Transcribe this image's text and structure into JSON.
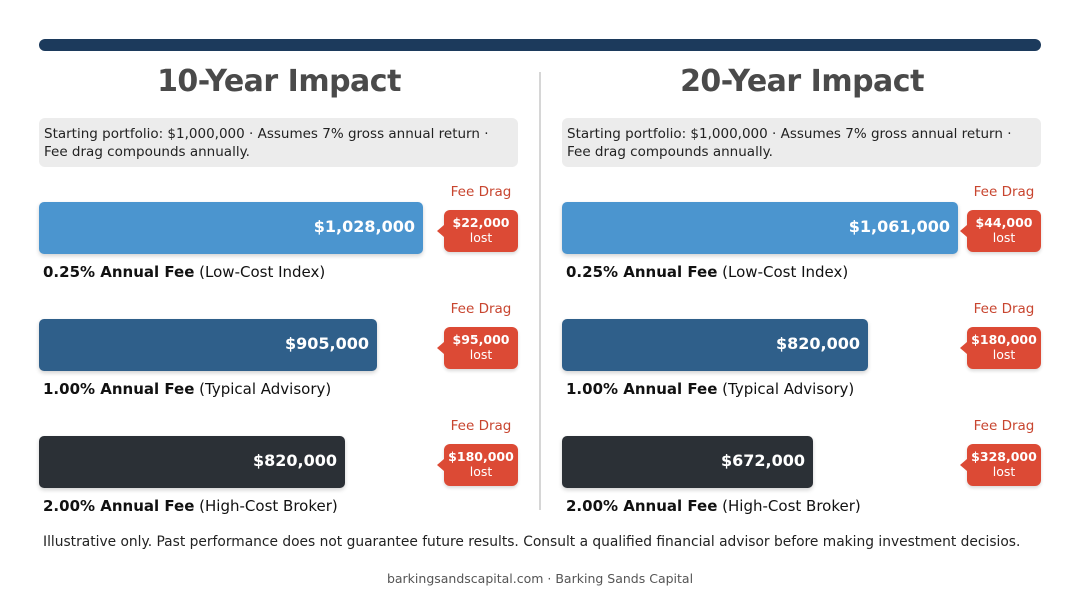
{
  "colors": {
    "top_bar": "#1c3a5c",
    "low_cost_bar": "#4b95cf",
    "typical_bar": "#2f5f8a",
    "high_cost_bar": "#2b3036",
    "fee_drag": "#dc4a35"
  },
  "chart_data": [
    {
      "type": "bar",
      "orientation": "horizontal",
      "title": "10-Year Impact",
      "note": "Starting portfolio: $1,000,000 · Assumes 7% gross annual return · Fee drag compounds annually.",
      "rows": [
        {
          "fee": "0.25% Annual Fee",
          "category": "(Low-Cost Index)",
          "value": 1028000,
          "value_label": "$1,028,000",
          "drag_title": "Fee Drag",
          "drag_amount": "$22,000",
          "drag_suffix": "lost"
        },
        {
          "fee": "1.00% Annual Fee",
          "category": "(Typical Advisory)",
          "value": 905000,
          "value_label": "$905,000",
          "drag_title": "Fee Drag",
          "drag_amount": "$95,000",
          "drag_suffix": "lost"
        },
        {
          "fee": "2.00% Annual Fee",
          "category": "(High-Cost Broker)",
          "value": 820000,
          "value_label": "$820,000",
          "drag_title": "Fee Drag",
          "drag_amount": "$180,000",
          "drag_suffix": "lost"
        }
      ]
    },
    {
      "type": "bar",
      "orientation": "horizontal",
      "title": "20-Year Impact",
      "note": "Starting portfolio: $1,000,000 · Assumes 7% gross annual return · Fee drag compounds annually.",
      "rows": [
        {
          "fee": "0.25% Annual Fee",
          "category": "(Low-Cost Index)",
          "value": 1061000,
          "value_label": "$1,061,000",
          "drag_title": "Fee Drag",
          "drag_amount": "$44,000",
          "drag_suffix": "lost"
        },
        {
          "fee": "1.00% Annual Fee",
          "category": "(Typical Advisory)",
          "value": 820000,
          "value_label": "$820,000",
          "drag_title": "Fee Drag",
          "drag_amount": "$180,000",
          "drag_suffix": "lost"
        },
        {
          "fee": "2.00% Annual Fee",
          "category": "(High-Cost Broker)",
          "value": 672000,
          "value_label": "$672,000",
          "drag_title": "Fee Drag",
          "drag_amount": "$328,000",
          "drag_suffix": "lost"
        }
      ]
    }
  ],
  "disclaimer": "Illustrative only. Past performance does not guarantee future results. Consult a qualified financial advisor before making investment decisios.",
  "footer": "barkingsandscapital.com · Barking Sands Capital"
}
